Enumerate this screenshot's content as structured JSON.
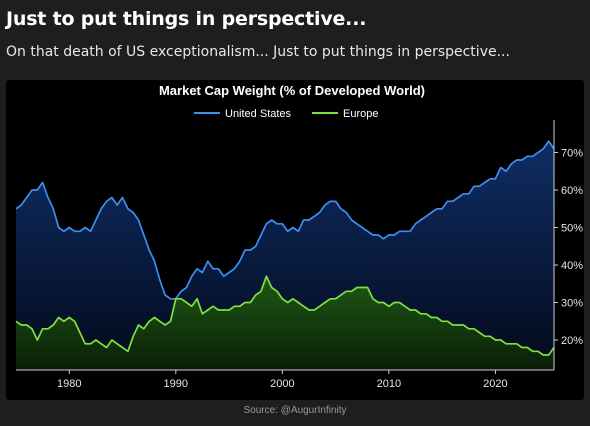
{
  "post": {
    "title": "Just to put things in perspective...",
    "subtitle": "On that death of US exceptionalism... Just to put things in perspective..."
  },
  "source": "Source: @AugurInfinity",
  "colors": {
    "background": "#1e1e1e",
    "chart_background": "#000000",
    "us": "#3d8fef",
    "us_fill_top": "#10306a",
    "europe": "#7fe040",
    "europe_fill_top": "#1e5a16"
  },
  "chart_data": {
    "type": "area",
    "title": "Market Cap Weight (% of Developed World)",
    "xlabel": "",
    "ylabel": "",
    "xlim": [
      1975,
      2025.5
    ],
    "ylim": [
      12,
      76
    ],
    "x_ticks": [
      1980,
      1990,
      2000,
      2010,
      2020
    ],
    "x_tick_labels": [
      "1980",
      "1990",
      "2000",
      "2010",
      "2020"
    ],
    "y_ticks": [
      20,
      30,
      40,
      50,
      60,
      70
    ],
    "y_tick_labels": [
      "20%",
      "30%",
      "40%",
      "50%",
      "60%",
      "70%"
    ],
    "y_axis_side": "right",
    "grid": false,
    "legend_position": "top-center",
    "series": [
      {
        "name": "United States",
        "x": [
          1975,
          1975.5,
          1976,
          1976.5,
          1977,
          1977.5,
          1978,
          1978.5,
          1979,
          1979.5,
          1980,
          1980.5,
          1981,
          1981.5,
          1982,
          1982.5,
          1983,
          1983.5,
          1984,
          1984.5,
          1985,
          1985.5,
          1986,
          1986.5,
          1987,
          1987.5,
          1988,
          1988.5,
          1989,
          1989.5,
          1990,
          1990.5,
          1991,
          1991.5,
          1992,
          1992.5,
          1993,
          1993.5,
          1994,
          1994.5,
          1995,
          1995.5,
          1996,
          1996.5,
          1997,
          1997.5,
          1998,
          1998.5,
          1999,
          1999.5,
          2000,
          2000.5,
          2001,
          2001.5,
          2002,
          2002.5,
          2003,
          2003.5,
          2004,
          2004.5,
          2005,
          2005.5,
          2006,
          2006.5,
          2007,
          2007.5,
          2008,
          2008.5,
          2009,
          2009.5,
          2010,
          2010.5,
          2011,
          2011.5,
          2012,
          2012.5,
          2013,
          2013.5,
          2014,
          2014.5,
          2015,
          2015.5,
          2016,
          2016.5,
          2017,
          2017.5,
          2018,
          2018.5,
          2019,
          2019.5,
          2020,
          2020.5,
          2021,
          2021.5,
          2022,
          2022.5,
          2023,
          2023.5,
          2024,
          2024.5,
          2025,
          2025.5
        ],
        "values": [
          55,
          56,
          58,
          60,
          60,
          62,
          58,
          55,
          50,
          49,
          50,
          49,
          49,
          50,
          49,
          52,
          55,
          57,
          58,
          56,
          58,
          55,
          54,
          52,
          48,
          44,
          41,
          36,
          32,
          31,
          31,
          33,
          34,
          37,
          39,
          38,
          41,
          39,
          39,
          37,
          38,
          39,
          41,
          44,
          44,
          45,
          48,
          51,
          52,
          51,
          51,
          49,
          50,
          49,
          52,
          52,
          53,
          54,
          56,
          57,
          57,
          55,
          54,
          52,
          51,
          50,
          49,
          48,
          48,
          47,
          48,
          48,
          49,
          49,
          49,
          51,
          52,
          53,
          54,
          55,
          55,
          57,
          57,
          58,
          59,
          59,
          61,
          61,
          62,
          63,
          63,
          66,
          65,
          67,
          68,
          68,
          69,
          69,
          70,
          71,
          73,
          71
        ]
      },
      {
        "name": "Europe",
        "x": [
          1975,
          1975.5,
          1976,
          1976.5,
          1977,
          1977.5,
          1978,
          1978.5,
          1979,
          1979.5,
          1980,
          1980.5,
          1981,
          1981.5,
          1982,
          1982.5,
          1983,
          1983.5,
          1984,
          1984.5,
          1985,
          1985.5,
          1986,
          1986.5,
          1987,
          1987.5,
          1988,
          1988.5,
          1989,
          1989.5,
          1990,
          1990.5,
          1991,
          1991.5,
          1992,
          1992.5,
          1993,
          1993.5,
          1994,
          1994.5,
          1995,
          1995.5,
          1996,
          1996.5,
          1997,
          1997.5,
          1998,
          1998.5,
          1999,
          1999.5,
          2000,
          2000.5,
          2001,
          2001.5,
          2002,
          2002.5,
          2003,
          2003.5,
          2004,
          2004.5,
          2005,
          2005.5,
          2006,
          2006.5,
          2007,
          2007.5,
          2008,
          2008.5,
          2009,
          2009.5,
          2010,
          2010.5,
          2011,
          2011.5,
          2012,
          2012.5,
          2013,
          2013.5,
          2014,
          2014.5,
          2015,
          2015.5,
          2016,
          2016.5,
          2017,
          2017.5,
          2018,
          2018.5,
          2019,
          2019.5,
          2020,
          2020.5,
          2021,
          2021.5,
          2022,
          2022.5,
          2023,
          2023.5,
          2024,
          2024.5,
          2025,
          2025.5
        ],
        "values": [
          25,
          24,
          24,
          23,
          20,
          23,
          23,
          24,
          26,
          25,
          26,
          25,
          22,
          19,
          19,
          20,
          19,
          18,
          20,
          19,
          18,
          17,
          21,
          24,
          23,
          25,
          26,
          25,
          24,
          25,
          31,
          31,
          30,
          29,
          31,
          27,
          28,
          29,
          28,
          28,
          28,
          29,
          29,
          30,
          30,
          32,
          33,
          37,
          34,
          33,
          31,
          30,
          31,
          30,
          29,
          28,
          28,
          29,
          30,
          31,
          31,
          32,
          33,
          33,
          34,
          34,
          34,
          31,
          30,
          30,
          29,
          30,
          30,
          29,
          28,
          28,
          27,
          27,
          26,
          26,
          25,
          25,
          24,
          24,
          24,
          23,
          23,
          22,
          21,
          21,
          20,
          20,
          19,
          19,
          19,
          18,
          18,
          17,
          17,
          16,
          16,
          18
        ]
      }
    ]
  }
}
